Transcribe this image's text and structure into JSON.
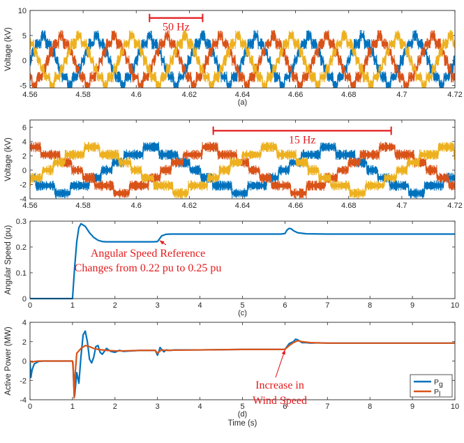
{
  "colors": {
    "blue": "#0072BD",
    "orange": "#D95319",
    "yellow": "#EDB120",
    "annotation": "#E41A1C",
    "axis": "#262626"
  },
  "chart_data": [
    {
      "id": "a",
      "type": "line",
      "caption": "(a)",
      "ylabel": "Voltage (kV)",
      "xlabel": "",
      "xlim": [
        4.56,
        4.72
      ],
      "ylim": [
        -5.5,
        10
      ],
      "xticks": [
        4.56,
        4.58,
        4.6,
        4.62,
        4.64,
        4.66,
        4.68,
        4.7,
        4.72
      ],
      "xtick_labels": [
        "4.56",
        "4.58",
        "4.6",
        "4.62",
        "4.64",
        "4.66",
        "4.68",
        "4.7",
        "4.72"
      ],
      "yticks": [
        -5,
        0,
        5,
        10
      ],
      "ytick_labels": [
        "-5",
        "0",
        "5",
        "10"
      ],
      "grid": false,
      "signal": {
        "kind": "three-phase PWM voltage",
        "frequency_hz": 50,
        "amplitude_kv": 4.3,
        "phase_deg": [
          0,
          -120,
          120
        ],
        "colors": [
          "blue",
          "orange",
          "yellow"
        ]
      },
      "annotations": [
        {
          "text": "50 Hz",
          "x_start": 4.605,
          "x_end": 4.625,
          "y": 8.5
        }
      ]
    },
    {
      "id": "b",
      "type": "line",
      "caption": "",
      "ylabel": "Voltage (kV)",
      "xlabel": "",
      "xlim": [
        4.56,
        4.72
      ],
      "ylim": [
        -4,
        7
      ],
      "xticks": [
        4.56,
        4.58,
        4.6,
        4.62,
        4.64,
        4.66,
        4.68,
        4.7,
        4.72
      ],
      "xtick_labels": [
        "4.56",
        "4.58",
        "4.6",
        "4.62",
        "4.64",
        "4.66",
        "4.68",
        "4.7",
        "4.72"
      ],
      "yticks": [
        -4,
        -2,
        0,
        2,
        4,
        6
      ],
      "ytick_labels": [
        "-4",
        "-2",
        "0",
        "2",
        "4",
        "6"
      ],
      "grid": false,
      "signal": {
        "kind": "three-phase PWM voltage",
        "frequency_hz": 15,
        "amplitude_kv": 2.8,
        "phase_deg": [
          60,
          -60,
          180
        ],
        "colors": [
          "blue",
          "orange",
          "yellow"
        ]
      },
      "annotations": [
        {
          "text": "15 Hz",
          "x_start": 4.629,
          "x_end": 4.696,
          "y": 5.5
        }
      ]
    },
    {
      "id": "c",
      "type": "line",
      "caption": "(c)",
      "ylabel": "Angular Speed (pu)",
      "xlabel": "",
      "xlim": [
        0,
        10
      ],
      "ylim": [
        0,
        0.3
      ],
      "xticks": [
        0,
        1,
        2,
        3,
        4,
        5,
        6,
        7,
        8,
        9,
        10
      ],
      "xtick_labels": [
        "0",
        "1",
        "2",
        "3",
        "4",
        "5",
        "6",
        "7",
        "8",
        "9",
        "10"
      ],
      "yticks": [
        0,
        0.1,
        0.2,
        0.3
      ],
      "ytick_labels": [
        "0",
        "0.1",
        "0.2",
        "0.3"
      ],
      "grid": false,
      "series": [
        {
          "color": "blue",
          "x": [
            0,
            1.0,
            1.05,
            1.1,
            1.15,
            1.2,
            1.3,
            1.4,
            1.5,
            1.6,
            1.7,
            1.8,
            2.0,
            2.5,
            2.9,
            3.0,
            3.05,
            3.1,
            3.2,
            3.3,
            3.5,
            4.0,
            5.0,
            5.9,
            6.0,
            6.05,
            6.1,
            6.15,
            6.2,
            6.3,
            6.5,
            7.0,
            10.0
          ],
          "y": [
            0,
            0,
            0.12,
            0.22,
            0.275,
            0.29,
            0.28,
            0.255,
            0.237,
            0.226,
            0.221,
            0.22,
            0.22,
            0.22,
            0.22,
            0.221,
            0.232,
            0.243,
            0.249,
            0.25,
            0.25,
            0.25,
            0.25,
            0.25,
            0.252,
            0.266,
            0.272,
            0.27,
            0.263,
            0.255,
            0.251,
            0.25,
            0.25
          ]
        }
      ],
      "annotations": [
        {
          "text": [
            "Angular Speed Reference",
            "Changes from 0.22 pu to 0.25 pu"
          ],
          "arrow_to": [
            3.05,
            0.225
          ]
        }
      ]
    },
    {
      "id": "d",
      "type": "line",
      "caption": "(d)",
      "ylabel": "Active Power (MW)",
      "xlabel": "Time (s)",
      "xlim": [
        0,
        10
      ],
      "ylim": [
        -4,
        4
      ],
      "xticks": [
        0,
        1,
        2,
        3,
        4,
        5,
        6,
        7,
        8,
        9,
        10
      ],
      "xtick_labels": [
        "0",
        "1",
        "2",
        "3",
        "4",
        "5",
        "6",
        "7",
        "8",
        "9",
        "10"
      ],
      "yticks": [
        -4,
        -2,
        0,
        2,
        4
      ],
      "ytick_labels": [
        "-4",
        "-2",
        "0",
        "2",
        "4"
      ],
      "grid": false,
      "legend": {
        "position": "bottom-right",
        "entries": [
          {
            "label": "P",
            "sub": "g",
            "color": "blue"
          },
          {
            "label": "P",
            "sub": "l",
            "color": "orange"
          }
        ]
      },
      "series": [
        {
          "name": "Pg",
          "color": "blue",
          "x": [
            0,
            0.02,
            0.05,
            0.1,
            0.2,
            0.3,
            1.0,
            1.01,
            1.03,
            1.05,
            1.1,
            1.15,
            1.2,
            1.25,
            1.3,
            1.35,
            1.4,
            1.45,
            1.5,
            1.55,
            1.6,
            1.65,
            1.7,
            1.8,
            1.9,
            2.0,
            2.1,
            2.2,
            2.4,
            2.6,
            2.8,
            2.95,
            3.0,
            3.03,
            3.06,
            3.1,
            3.15,
            3.2,
            3.3,
            3.4,
            3.5,
            4.0,
            5.0,
            6.0,
            6.05,
            6.1,
            6.2,
            6.25,
            6.3,
            6.4,
            6.5,
            6.6,
            6.8,
            7.0,
            10.0
          ],
          "y": [
            0,
            -1.7,
            -0.9,
            -0.3,
            -0.05,
            0,
            0,
            -0.2,
            -2.5,
            -3.6,
            -1.2,
            -2.3,
            0.5,
            2.7,
            3.1,
            2.0,
            0.2,
            -0.2,
            0.4,
            1.5,
            1.6,
            0.9,
            0.7,
            1.3,
            1.0,
            0.9,
            1.1,
            1.0,
            1.05,
            1.1,
            1.1,
            1.1,
            0.6,
            0.95,
            1.4,
            1.2,
            0.95,
            1.15,
            1.1,
            1.15,
            1.15,
            1.15,
            1.2,
            1.2,
            1.5,
            1.8,
            2.0,
            2.25,
            2.2,
            1.9,
            1.9,
            1.85,
            1.88,
            1.85,
            1.85
          ]
        },
        {
          "name": "Pl",
          "color": "orange",
          "x": [
            0,
            0.05,
            0.1,
            0.2,
            1.0,
            1.02,
            1.04,
            1.06,
            1.1,
            1.2,
            1.3,
            1.4,
            1.5,
            1.6,
            1.8,
            2.0,
            2.2,
            2.6,
            2.95,
            3.0,
            3.05,
            3.1,
            3.2,
            3.4,
            4.0,
            5.0,
            6.0,
            6.1,
            6.2,
            6.3,
            6.4,
            6.6,
            7.0,
            10.0
          ],
          "y": [
            0,
            -0.1,
            -0.05,
            0,
            0,
            -1.0,
            -3.8,
            -1.5,
            0.8,
            1.3,
            1.6,
            1.5,
            1.3,
            1.2,
            1.1,
            1.05,
            1.05,
            1.1,
            1.1,
            0.8,
            1.0,
            1.15,
            1.1,
            1.12,
            1.15,
            1.2,
            1.2,
            1.6,
            1.9,
            2.1,
            2.0,
            1.9,
            1.85,
            1.85
          ]
        }
      ],
      "annotations": [
        {
          "text": [
            "Increase in",
            "Wind Speed"
          ],
          "arrow_to": [
            6.0,
            1.15
          ]
        }
      ]
    }
  ]
}
